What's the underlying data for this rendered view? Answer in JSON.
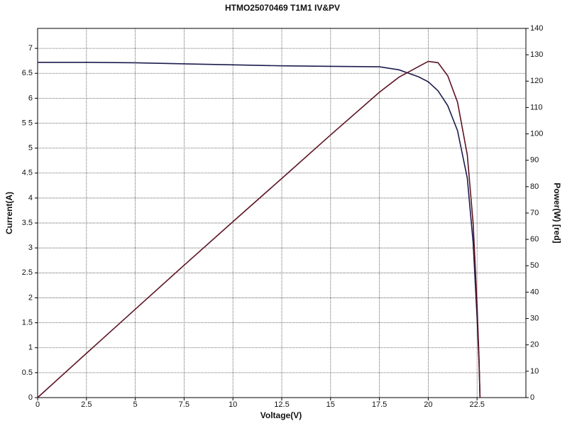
{
  "chart_data": {
    "type": "line",
    "title": "HTMO25070469 T1M1 IV&PV",
    "x_label": "Voltage(V)",
    "y_label": "Current(A)",
    "y2_label": "Power(W) [red]",
    "x": [
      0,
      2.5,
      5,
      7.5,
      10,
      12.5,
      15,
      17.5,
      18.5,
      19,
      19.5,
      20,
      20.5,
      21,
      21.5,
      22,
      22.3,
      22.5,
      22.6,
      22.65
    ],
    "series": [
      {
        "color": "#1c1c4e",
        "values": [
          6.72,
          6.72,
          6.71,
          6.69,
          6.67,
          6.65,
          6.64,
          6.63,
          6.57,
          6.5,
          6.43,
          6.33,
          6.15,
          5.85,
          5.35,
          4.4,
          3.1,
          1.6,
          0.7,
          0
        ]
      },
      {
        "color": "#5e1424",
        "axis": "y2",
        "values": [
          0,
          16.8,
          33.5,
          50.2,
          66.7,
          83.1,
          99.6,
          115.8,
          121.5,
          123.5,
          125.5,
          127.5,
          127,
          122,
          112,
          92,
          66,
          35,
          15,
          0
        ]
      }
    ],
    "xlim": [
      0,
      25
    ],
    "xticks": [
      0,
      2.5,
      5,
      7.5,
      10,
      12.5,
      15,
      17.5,
      20,
      22.5
    ],
    "ylim": [
      0,
      7.4
    ],
    "yticks": [
      0,
      0.5,
      1,
      1.5,
      2,
      2.5,
      3,
      3.5,
      4,
      4.5,
      5,
      {
        "value": 5.5,
        "label": "5 5"
      },
      6,
      6.5,
      7
    ],
    "y2lim": [
      0,
      140
    ],
    "y2ticks": [
      0,
      10,
      20,
      30,
      40,
      50,
      60,
      70,
      80,
      90,
      100,
      110,
      120,
      130,
      140
    ],
    "grid": true
  }
}
